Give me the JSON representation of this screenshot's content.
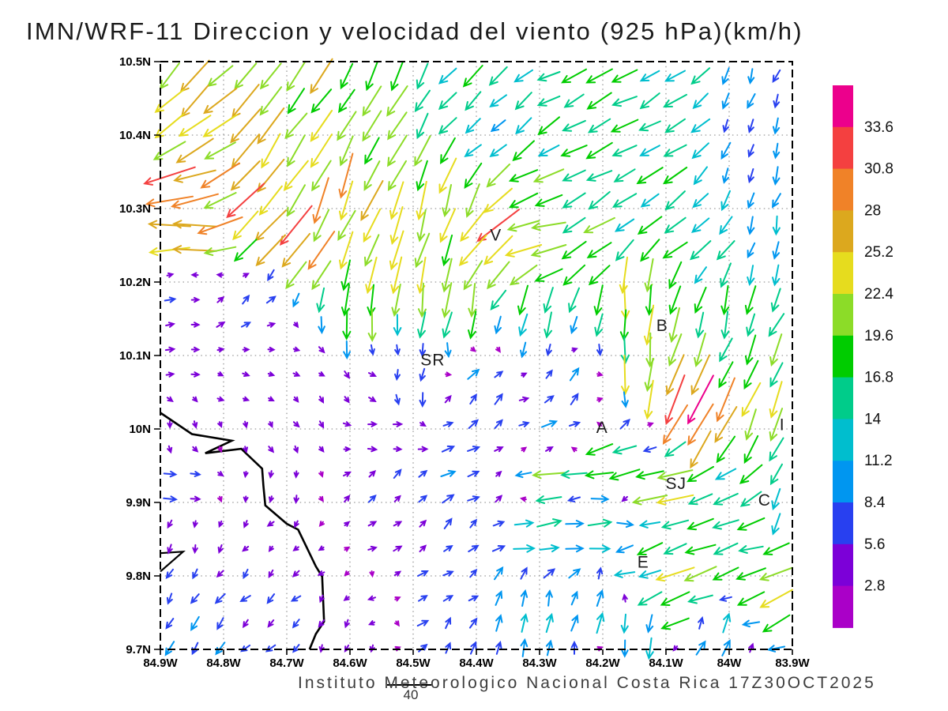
{
  "chart_data": {
    "type": "quiver",
    "title": "IMN/WRF-11 Direccion y velocidad del viento (925 hPa)(km/h)",
    "footer": "Instituto Meteorologico Nacional Costa Rica 17Z30OCT2025",
    "units": "km/h",
    "x_axis": {
      "tick_labels": [
        "84.9W",
        "84.8W",
        "84.7W",
        "84.6W",
        "84.5W",
        "84.4W",
        "84.3W",
        "84.2W",
        "84.1W",
        "84W",
        "83.9W"
      ],
      "lon_min": -84.9,
      "lon_max": -83.9
    },
    "y_axis": {
      "tick_labels": [
        "10.5N",
        "10.4N",
        "10.3N",
        "10.2N",
        "10.1N",
        "10N",
        "9.9N",
        "9.8N",
        "9.7N"
      ],
      "lat_min": 9.7,
      "lat_max": 10.5
    },
    "colorbar": {
      "bin_size_kmh": 2.8,
      "boundary_labels_top_to_bottom": [
        "33.6",
        "30.8",
        "28",
        "25.2",
        "22.4",
        "19.6",
        "16.8",
        "14",
        "11.2",
        "8.4",
        "5.6",
        "2.8"
      ],
      "colors_top_to_bottom": [
        "#EC008C",
        "#F44040",
        "#F08228",
        "#DCA81E",
        "#E6DC1E",
        "#8CDC28",
        "#00CC00",
        "#00CC8A",
        "#00BECE",
        "#0096F0",
        "#2840F0",
        "#7C00D8",
        "#AA00C8"
      ]
    },
    "reference_vector": {
      "value": "40"
    },
    "city_labels": [
      {
        "label": "V",
        "lon": -84.369,
        "lat": 10.264
      },
      {
        "label": "B",
        "lon": -84.106,
        "lat": 10.141
      },
      {
        "label": "SR",
        "lon": -84.469,
        "lat": 10.094
      },
      {
        "label": "A",
        "lon": -84.201,
        "lat": 10.002
      },
      {
        "label": "SJ",
        "lon": -84.084,
        "lat": 9.926
      },
      {
        "label": "C",
        "lon": -83.944,
        "lat": 9.903
      },
      {
        "label": "E",
        "lon": -84.136,
        "lat": 9.819
      },
      {
        "label": "I",
        "lon": -83.916,
        "lat": 10.006
      }
    ],
    "coastline_lonlat": [
      [
        -84.9,
        10.022
      ],
      [
        -84.85,
        9.993
      ],
      [
        -84.787,
        9.984
      ],
      [
        -84.829,
        9.967
      ],
      [
        -84.772,
        9.973
      ],
      [
        -84.739,
        9.946
      ],
      [
        -84.737,
        9.923
      ],
      [
        -84.734,
        9.896
      ],
      [
        -84.7,
        9.871
      ],
      [
        -84.682,
        9.863
      ],
      [
        -84.654,
        9.813
      ],
      [
        -84.644,
        9.799
      ],
      [
        -84.641,
        9.738
      ],
      [
        -84.654,
        9.721
      ],
      [
        -84.664,
        9.7
      ]
    ],
    "islet_lonlat": [
      [
        -84.9,
        9.831
      ],
      [
        -84.864,
        9.833
      ],
      [
        -84.9,
        9.806
      ]
    ],
    "arrow_grid": {
      "cols": 25,
      "rows": 24
    },
    "wind_control_points_lon_lat_dirdeg_speedkmh": [
      [
        -84.87,
        10.47,
        225,
        24
      ],
      [
        -84.7,
        10.46,
        212,
        22
      ],
      [
        -84.55,
        10.47,
        206,
        20
      ],
      [
        -84.4,
        10.47,
        225,
        15
      ],
      [
        -84.25,
        10.47,
        242,
        16
      ],
      [
        -84.1,
        10.46,
        237,
        14
      ],
      [
        -83.95,
        10.47,
        200,
        9
      ],
      [
        -84.87,
        10.4,
        237,
        26
      ],
      [
        -84.72,
        10.4,
        216,
        24
      ],
      [
        -84.55,
        10.4,
        210,
        19
      ],
      [
        -84.38,
        10.41,
        226,
        13
      ],
      [
        -84.2,
        10.4,
        246,
        16
      ],
      [
        -83.95,
        10.4,
        192,
        9
      ],
      [
        -84.87,
        10.33,
        258,
        30
      ],
      [
        -84.75,
        10.3,
        226,
        27
      ],
      [
        -84.6,
        10.32,
        202,
        26
      ],
      [
        -84.45,
        10.3,
        196,
        22
      ],
      [
        -84.3,
        10.33,
        242,
        17
      ],
      [
        -84.15,
        10.32,
        240,
        16
      ],
      [
        -83.95,
        10.32,
        200,
        10
      ],
      [
        -84.86,
        10.27,
        268,
        32
      ],
      [
        -84.68,
        10.25,
        212,
        27
      ],
      [
        -84.52,
        10.24,
        196,
        24
      ],
      [
        -84.37,
        10.26,
        227,
        28
      ],
      [
        -84.3,
        10.25,
        258,
        22
      ],
      [
        -84.22,
        10.26,
        236,
        18
      ],
      [
        -84.05,
        10.26,
        232,
        15
      ],
      [
        -83.93,
        10.25,
        192,
        10
      ],
      [
        -84.88,
        10.18,
        90,
        6
      ],
      [
        -84.76,
        10.17,
        48,
        7
      ],
      [
        -84.57,
        10.16,
        188,
        19
      ],
      [
        -84.45,
        10.18,
        190,
        21
      ],
      [
        -84.3,
        10.16,
        196,
        16
      ],
      [
        -84.15,
        10.17,
        182,
        22
      ],
      [
        -84.0,
        10.16,
        196,
        16
      ],
      [
        -83.91,
        10.15,
        205,
        17
      ],
      [
        -84.88,
        10.08,
        95,
        5
      ],
      [
        -84.7,
        10.08,
        102,
        4
      ],
      [
        -84.55,
        10.08,
        132,
        4
      ],
      [
        -84.5,
        10.07,
        196,
        9
      ],
      [
        -84.4,
        10.05,
        42,
        8
      ],
      [
        -84.25,
        10.06,
        32,
        8
      ],
      [
        -84.14,
        10.06,
        184,
        24
      ],
      [
        -83.97,
        10.08,
        205,
        20
      ],
      [
        -84.88,
        10.0,
        172,
        4
      ],
      [
        -84.7,
        10.0,
        142,
        4
      ],
      [
        -84.55,
        10.0,
        92,
        5
      ],
      [
        -84.4,
        10.0,
        58,
        7
      ],
      [
        -84.28,
        10.0,
        76,
        9
      ],
      [
        -84.16,
        10.01,
        40,
        8
      ],
      [
        -84.05,
        10.03,
        206,
        33
      ],
      [
        -83.95,
        10.01,
        202,
        21
      ],
      [
        -84.88,
        9.93,
        90,
        7
      ],
      [
        -84.72,
        9.92,
        202,
        4
      ],
      [
        -84.56,
        9.92,
        48,
        6
      ],
      [
        -84.43,
        9.93,
        60,
        8
      ],
      [
        -84.28,
        9.93,
        264,
        18
      ],
      [
        -84.18,
        9.96,
        256,
        19
      ],
      [
        -84.11,
        9.92,
        261,
        21
      ],
      [
        -83.99,
        9.92,
        237,
        16
      ],
      [
        -83.91,
        9.89,
        192,
        14
      ],
      [
        -84.88,
        9.84,
        202,
        5
      ],
      [
        -84.7,
        9.84,
        226,
        4
      ],
      [
        -84.55,
        9.85,
        62,
        5
      ],
      [
        -84.42,
        9.85,
        46,
        7
      ],
      [
        -84.3,
        9.86,
        86,
        14
      ],
      [
        -84.2,
        9.87,
        88,
        17
      ],
      [
        -84.14,
        9.82,
        250,
        16
      ],
      [
        -83.96,
        9.85,
        256,
        18
      ],
      [
        -84.87,
        9.77,
        212,
        7
      ],
      [
        -84.86,
        9.72,
        216,
        9
      ],
      [
        -84.72,
        9.76,
        226,
        6
      ],
      [
        -84.58,
        9.76,
        236,
        4
      ],
      [
        -84.46,
        9.77,
        68,
        7
      ],
      [
        -84.32,
        9.76,
        12,
        10
      ],
      [
        -84.2,
        9.76,
        16,
        12
      ],
      [
        -84.08,
        9.78,
        246,
        22
      ],
      [
        -83.94,
        9.78,
        242,
        20
      ],
      [
        -84.6,
        9.71,
        202,
        5
      ],
      [
        -84.45,
        9.71,
        32,
        7
      ],
      [
        -84.3,
        9.71,
        10,
        10
      ],
      [
        -84.15,
        9.72,
        190,
        12
      ],
      [
        -84.02,
        9.71,
        30,
        12
      ]
    ]
  }
}
